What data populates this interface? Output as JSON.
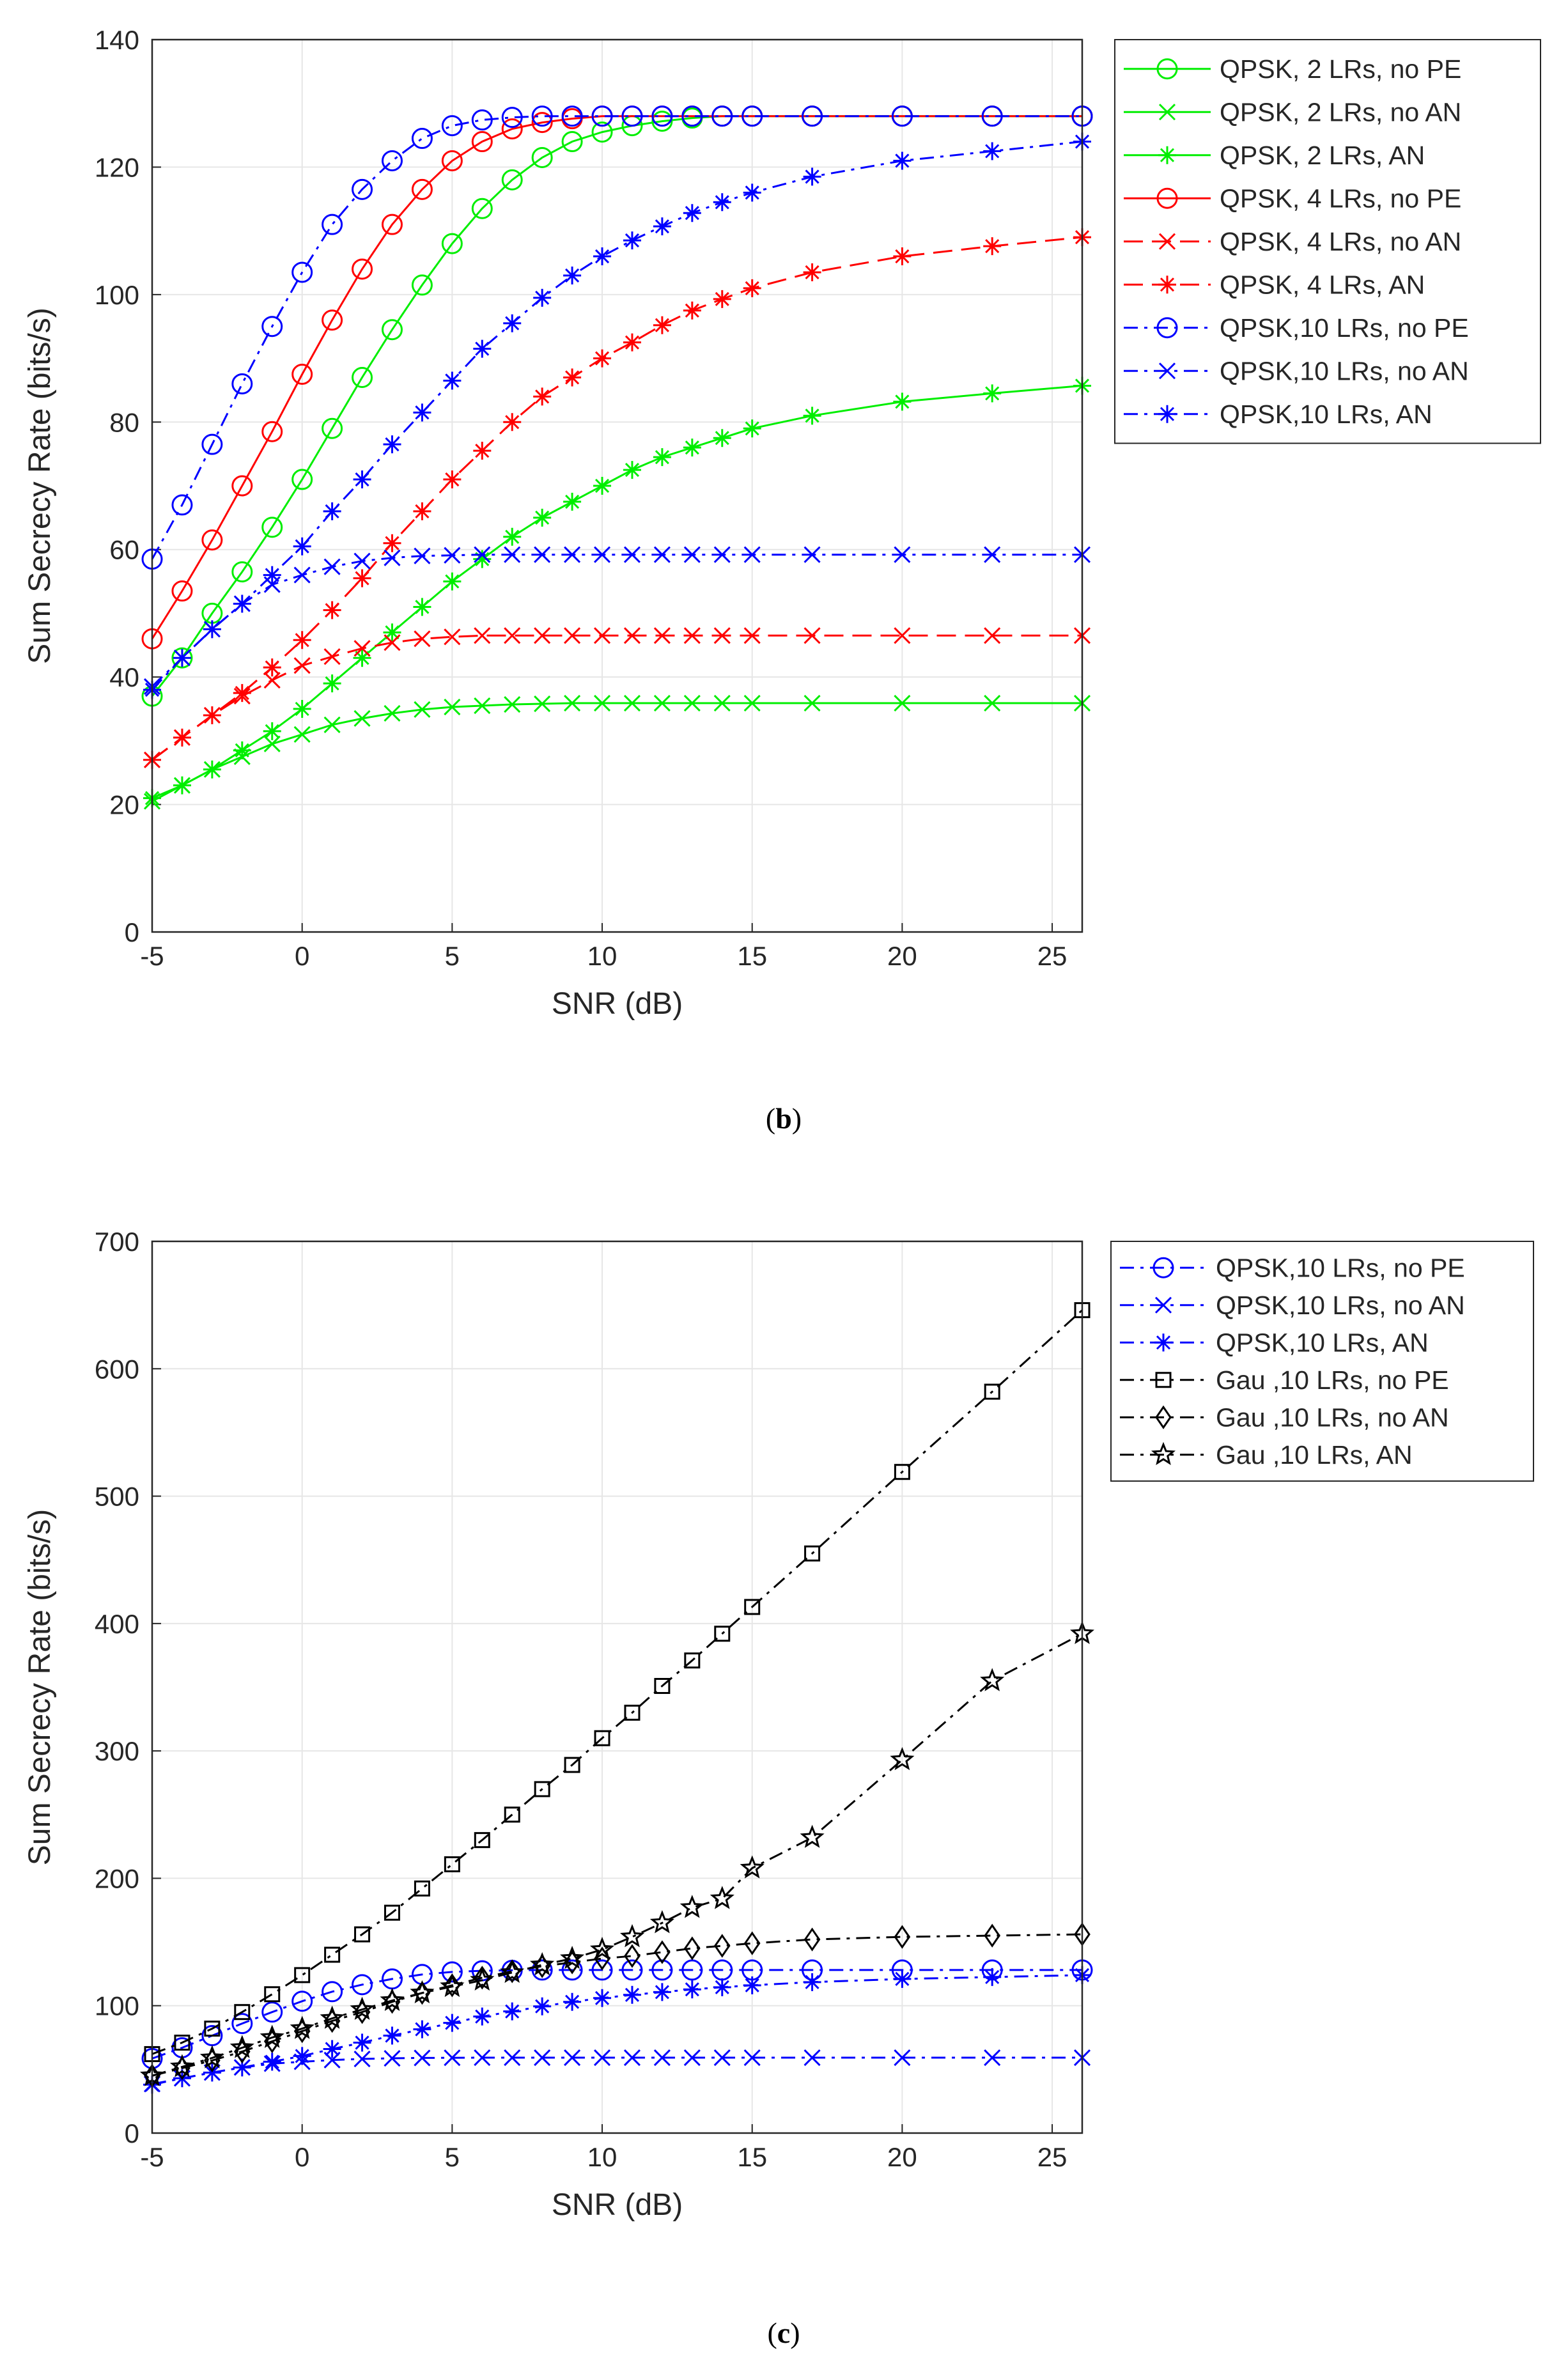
{
  "colors": {
    "green": "#00ee00",
    "red": "#ff0000",
    "blue": "#0000ff",
    "black": "#000000",
    "grid": "#e6e6e6",
    "axis": "#262626"
  },
  "panels": [
    {
      "caption_letter": "b",
      "legend": [
        "QPSK,  2 LRs, no PE",
        "QPSK,  2 LRs, no AN",
        "QPSK,  2 LRs, AN",
        "QPSK,  4 LRs, no PE",
        "QPSK,  4 LRs, no AN",
        "QPSK,  4 LRs, AN",
        "QPSK,10 LRs, no PE",
        "QPSK,10 LRs, no AN",
        "QPSK,10 LRs, AN"
      ]
    },
    {
      "caption_letter": "c",
      "legend": [
        "QPSK,10 LRs, no PE",
        "QPSK,10 LRs, no AN",
        "QPSK,10 LRs, AN",
        "Gau   ,10 LRs, no PE",
        "Gau   ,10 LRs, no AN",
        "Gau   ,10 LRs, AN"
      ]
    }
  ],
  "chart_data": [
    {
      "type": "line",
      "xlabel": "SNR (dB)",
      "ylabel": "Sum Secrecy Rate (bits/s)",
      "xlim": [
        -5,
        26
      ],
      "ylim": [
        0,
        140
      ],
      "xticks": [
        "-5",
        "0",
        "5",
        "10",
        "15",
        "20",
        "25"
      ],
      "yticks": [
        "0",
        "20",
        "40",
        "60",
        "80",
        "100",
        "120",
        "140"
      ],
      "grid": true,
      "legend_position": "outside-right-top",
      "x": [
        -5,
        -4,
        -3,
        -2,
        -1,
        0,
        1,
        2,
        3,
        4,
        5,
        6,
        7,
        8,
        9,
        10,
        11,
        12,
        13,
        14,
        15,
        17,
        20,
        23,
        26
      ],
      "series": [
        {
          "name": "QPSK,  2 LRs, no PE",
          "color": "green",
          "line": "solid",
          "marker": "circle",
          "values": [
            37,
            43,
            50,
            56.5,
            63.5,
            71,
            79,
            87,
            94.5,
            101.5,
            108,
            113.5,
            118,
            121.5,
            124,
            125.5,
            126.5,
            127.2,
            127.7,
            128,
            128,
            128,
            128,
            128,
            128
          ]
        },
        {
          "name": "QPSK,  2 LRs, no AN",
          "color": "green",
          "line": "solid",
          "marker": "x",
          "values": [
            20.5,
            23,
            25.5,
            27.5,
            29.5,
            31,
            32.5,
            33.5,
            34.3,
            34.9,
            35.3,
            35.5,
            35.7,
            35.8,
            35.9,
            35.9,
            35.9,
            35.9,
            35.9,
            35.9,
            35.9,
            35.9,
            35.9,
            35.9,
            35.9
          ]
        },
        {
          "name": "QPSK,  2 LRs, AN",
          "color": "green",
          "line": "solid",
          "marker": "asterisk",
          "values": [
            21,
            23,
            25.5,
            28.5,
            31.5,
            35,
            39,
            43,
            47,
            51,
            55,
            58.5,
            62,
            65,
            67.5,
            70,
            72.5,
            74.5,
            76,
            77.5,
            79,
            81,
            83.2,
            84.5,
            85.7
          ]
        },
        {
          "name": "QPSK,  4 LRs, no PE",
          "color": "red",
          "line": "solid",
          "marker": "circle",
          "values": [
            46,
            53.5,
            61.5,
            70,
            78.5,
            87.5,
            96,
            104,
            111,
            116.5,
            121,
            124,
            126,
            127,
            127.6,
            128,
            128,
            128,
            128,
            128,
            128,
            128,
            128,
            128,
            128
          ]
        },
        {
          "name": "QPSK,  4 LRs, no AN",
          "color": "red",
          "line": "dashed",
          "marker": "x",
          "values": [
            27,
            30.5,
            34,
            37,
            39.5,
            41.8,
            43.2,
            44.5,
            45.4,
            46,
            46.3,
            46.5,
            46.5,
            46.5,
            46.5,
            46.5,
            46.5,
            46.5,
            46.5,
            46.5,
            46.5,
            46.5,
            46.5,
            46.5,
            46.5
          ]
        },
        {
          "name": "QPSK,  4 LRs, AN",
          "color": "red",
          "line": "dashed",
          "marker": "asterisk",
          "values": [
            27,
            30.5,
            34,
            37.5,
            41.5,
            45.8,
            50.5,
            55.5,
            61,
            66,
            71,
            75.5,
            80,
            84,
            87,
            90,
            92.5,
            95.2,
            97.5,
            99.3,
            101,
            103.5,
            106,
            107.6,
            109
          ]
        },
        {
          "name": "QPSK,10 LRs, no PE",
          "color": "blue",
          "line": "dashdot",
          "marker": "circle",
          "values": [
            58.5,
            67,
            76.5,
            86,
            95,
            103.5,
            111,
            116.5,
            121,
            124.5,
            126.5,
            127.4,
            127.8,
            128,
            128,
            128,
            128,
            128,
            128,
            128,
            128,
            128,
            128,
            128,
            128
          ]
        },
        {
          "name": "QPSK,10 LRs, no AN",
          "color": "blue",
          "line": "dashdot",
          "marker": "x",
          "values": [
            38.5,
            43,
            47.5,
            51.5,
            54.5,
            56,
            57.3,
            58.2,
            58.7,
            59,
            59.1,
            59.2,
            59.2,
            59.2,
            59.2,
            59.2,
            59.2,
            59.2,
            59.2,
            59.2,
            59.2,
            59.2,
            59.2,
            59.2,
            59.2
          ]
        },
        {
          "name": "QPSK,10 LRs, AN",
          "color": "blue",
          "line": "dashdot",
          "marker": "asterisk",
          "values": [
            38,
            43,
            47.5,
            51.5,
            56,
            60.5,
            66,
            71,
            76.5,
            81.5,
            86.5,
            91.5,
            95.5,
            99.5,
            103,
            106,
            108.5,
            110.7,
            112.8,
            114.5,
            116,
            118.5,
            121,
            122.5,
            124
          ]
        }
      ]
    },
    {
      "type": "line",
      "xlabel": "SNR (dB)",
      "ylabel": "Sum Secrecy Rate (bits/s)",
      "xlim": [
        -5,
        26
      ],
      "ylim": [
        0,
        700
      ],
      "xticks": [
        "-5",
        "0",
        "5",
        "10",
        "15",
        "20",
        "25"
      ],
      "yticks": [
        "0",
        "100",
        "200",
        "300",
        "400",
        "500",
        "600",
        "700"
      ],
      "grid": true,
      "legend_position": "outside-right-top",
      "x": [
        -5,
        -4,
        -3,
        -2,
        -1,
        0,
        1,
        2,
        3,
        4,
        5,
        6,
        7,
        8,
        9,
        10,
        11,
        12,
        13,
        14,
        15,
        17,
        20,
        23,
        26
      ],
      "series": [
        {
          "name": "QPSK,10 LRs, no PE",
          "color": "blue",
          "line": "dashdot",
          "marker": "circle",
          "values": [
            58.5,
            67,
            76.5,
            86,
            95,
            103.5,
            111,
            116.5,
            121,
            124.5,
            126.5,
            127.4,
            127.8,
            128,
            128,
            128,
            128,
            128,
            128,
            128,
            128,
            128,
            128,
            128,
            128
          ]
        },
        {
          "name": "QPSK,10 LRs, no AN",
          "color": "blue",
          "line": "dashdot",
          "marker": "x",
          "values": [
            38.5,
            43,
            47.5,
            51.5,
            54.5,
            56,
            57.3,
            58.2,
            58.7,
            59,
            59.1,
            59.2,
            59.2,
            59.2,
            59.2,
            59.2,
            59.2,
            59.2,
            59.2,
            59.2,
            59.2,
            59.2,
            59.2,
            59.2,
            59.2
          ]
        },
        {
          "name": "QPSK,10 LRs, AN",
          "color": "blue",
          "line": "dashdot",
          "marker": "asterisk",
          "values": [
            38,
            43,
            47.5,
            51.5,
            56,
            60.5,
            66,
            71,
            76.5,
            81.5,
            86.5,
            91.5,
            95.5,
            99.5,
            103,
            106,
            108.5,
            110.7,
            112.8,
            114.5,
            116,
            118.5,
            121,
            122.5,
            124
          ]
        },
        {
          "name": "Gau   ,10 LRs, no PE",
          "color": "black",
          "line": "dashdot",
          "marker": "square",
          "values": [
            62,
            71,
            82,
            95,
            109,
            124,
            140,
            156,
            173,
            192,
            211,
            230,
            250,
            270,
            289,
            310,
            330,
            351,
            371,
            392,
            413,
            455,
            519,
            582,
            646
          ]
        },
        {
          "name": "Gau   ,10 LRs, no AN",
          "color": "black",
          "line": "dashdot",
          "marker": "diamond",
          "values": [
            45,
            51,
            57,
            64,
            72,
            80,
            88,
            95,
            103,
            110,
            116,
            122,
            127,
            131,
            134,
            137,
            139,
            142,
            145,
            147,
            149,
            152,
            154,
            155,
            156
          ]
        },
        {
          "name": "Gau   ,10 LRs, AN",
          "color": "black",
          "line": "dashdot",
          "marker": "star",
          "values": [
            45,
            52,
            59,
            67,
            75,
            82,
            90,
            97,
            104,
            110,
            115,
            120,
            126,
            132,
            137,
            144,
            154,
            165,
            177,
            184,
            208,
            232,
            293,
            355,
            392
          ]
        }
      ]
    }
  ]
}
